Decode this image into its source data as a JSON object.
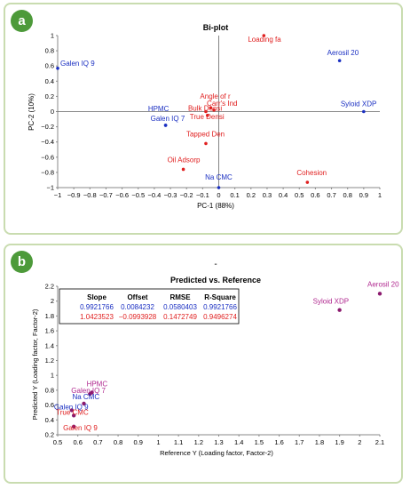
{
  "panel_a": {
    "badge": "a",
    "chart_data": {
      "type": "scatter",
      "title": "Bi-plot",
      "xlabel": "PC-1 (88%)",
      "ylabel": "PC-2 (10%)",
      "xlim": [
        -1,
        1
      ],
      "ylim": [
        -1,
        1
      ],
      "x_ticks": [
        "−1",
        "−0.9",
        "−0.8",
        "−0.7",
        "−0.6",
        "−0.5",
        "−0.4",
        "−0.3",
        "−0.2",
        "−0.1",
        "0",
        "0.1",
        "0.2",
        "0.3",
        "0.4",
        "0.5",
        "0.6",
        "0.7",
        "0.8",
        "0.9",
        "1"
      ],
      "x_tick_values": [
        -1,
        -0.9,
        -0.8,
        -0.7,
        -0.6,
        -0.5,
        -0.4,
        -0.3,
        -0.2,
        -0.1,
        0,
        0.1,
        0.2,
        0.3,
        0.4,
        0.5,
        0.6,
        0.7,
        0.8,
        0.9,
        1
      ],
      "y_ticks": [
        "1",
        "0.8",
        "0.6",
        "0.4",
        "0.2",
        "0",
        "−0.2",
        "−0.4",
        "−0.6",
        "−0.8",
        "−1"
      ],
      "y_tick_values": [
        1,
        0.8,
        0.6,
        0.4,
        0.2,
        0,
        -0.2,
        -0.4,
        -0.6,
        -0.8,
        -1
      ],
      "colors": {
        "blue": "#1a2fc2",
        "red": "#e02020"
      },
      "points": [
        {
          "label": "Galen IQ 9",
          "x": -1.0,
          "y": 0.57,
          "group": "blue"
        },
        {
          "label": "Aerosil 20",
          "x": 0.75,
          "y": 0.67,
          "group": "blue"
        },
        {
          "label": "Syloid XDP",
          "x": 0.9,
          "y": 0.0,
          "group": "blue"
        },
        {
          "label": "HPMC",
          "x": -0.33,
          "y": -0.18,
          "group": "blue"
        },
        {
          "label": "Galen IQ 7",
          "x": -0.33,
          "y": -0.18,
          "group": "blue"
        },
        {
          "label": "Na CMC",
          "x": 0.0,
          "y": -1.0,
          "group": "blue"
        },
        {
          "label": "Loading fa",
          "x": 0.28,
          "y": 1.0,
          "group": "red"
        },
        {
          "label": "Angle of r",
          "x": -0.05,
          "y": 0.05,
          "group": "red"
        },
        {
          "label": "Carr's Ind",
          "x": -0.03,
          "y": 0.02,
          "group": "red"
        },
        {
          "label": "Bulk Densi",
          "x": -0.08,
          "y": 0.0,
          "group": "red"
        },
        {
          "label": "True Densi",
          "x": -0.07,
          "y": -0.05,
          "group": "red"
        },
        {
          "label": "Tapped Den",
          "x": -0.08,
          "y": -0.42,
          "group": "red"
        },
        {
          "label": "Oil Adsorp",
          "x": -0.22,
          "y": -0.76,
          "group": "red"
        },
        {
          "label": "Cohesion",
          "x": 0.55,
          "y": -0.93,
          "group": "red"
        }
      ]
    }
  },
  "panel_b": {
    "badge": "b",
    "marker": "-",
    "chart_data": {
      "type": "scatter",
      "title": "Predicted vs. Reference",
      "xlabel": "Reference Y (Loading factor, Factor-2)",
      "ylabel": "Predicted Y (Loading factor, Factor-2)",
      "xlim": [
        0.5,
        2.1
      ],
      "ylim": [
        0.2,
        2.2
      ],
      "x_ticks": [
        "0.5",
        "0.6",
        "0.7",
        "0.8",
        "0.9",
        "1",
        "1.1",
        "1.2",
        "1.3",
        "1.4",
        "1.5",
        "1.6",
        "1.7",
        "1.8",
        "1.9",
        "2",
        "2.1"
      ],
      "x_tick_values": [
        0.5,
        0.6,
        0.7,
        0.8,
        0.9,
        1.0,
        1.1,
        1.2,
        1.3,
        1.4,
        1.5,
        1.6,
        1.7,
        1.8,
        1.9,
        2.0,
        2.1
      ],
      "y_ticks": [
        "2.2",
        "2",
        "1.8",
        "1.6",
        "1.4",
        "1.2",
        "1",
        "0.8",
        "0.6",
        "0.4",
        "0.2"
      ],
      "y_tick_values": [
        2.2,
        2.0,
        1.8,
        1.6,
        1.4,
        1.2,
        1.0,
        0.8,
        0.6,
        0.4,
        0.2
      ],
      "colors": {
        "blue": "#1a2fc2",
        "red": "#e02020",
        "overlap": "#b0288f",
        "marker": "#8b1a6e"
      },
      "stats_table": {
        "headers": [
          "Slope",
          "Offset",
          "RMSE",
          "R-Square"
        ],
        "rows": [
          {
            "values": [
              "0.9921766",
              "0.0084232",
              "0.0580403",
              "0.9921766"
            ],
            "color": "blue"
          },
          {
            "values": [
              "1.0423523",
              "−0.0993928",
              "0.1472749",
              "0.9496274"
            ],
            "color": "red"
          }
        ]
      },
      "points": [
        {
          "label": "Aerosil 20",
          "x": 2.1,
          "y": 2.1,
          "group": "overlap"
        },
        {
          "label": "Syloid XDP",
          "x": 1.9,
          "y": 1.88,
          "group": "overlap"
        },
        {
          "label": "HPMC",
          "x": 0.67,
          "y": 0.77,
          "group": "overlap"
        },
        {
          "label": "Galen IQ 7",
          "x": 0.66,
          "y": 0.75,
          "group": "overlap"
        },
        {
          "label": "Na CMC",
          "x": 0.63,
          "y": 0.62,
          "group": "blue"
        },
        {
          "label": "Galen IQ 9",
          "x": 0.57,
          "y": 0.53,
          "group": "blue"
        },
        {
          "label": "True CMC",
          "x": 0.58,
          "y": 0.46,
          "group": "red"
        },
        {
          "label": "Galen IQ 9",
          "x": 0.58,
          "y": 0.31,
          "group": "red"
        }
      ]
    }
  }
}
